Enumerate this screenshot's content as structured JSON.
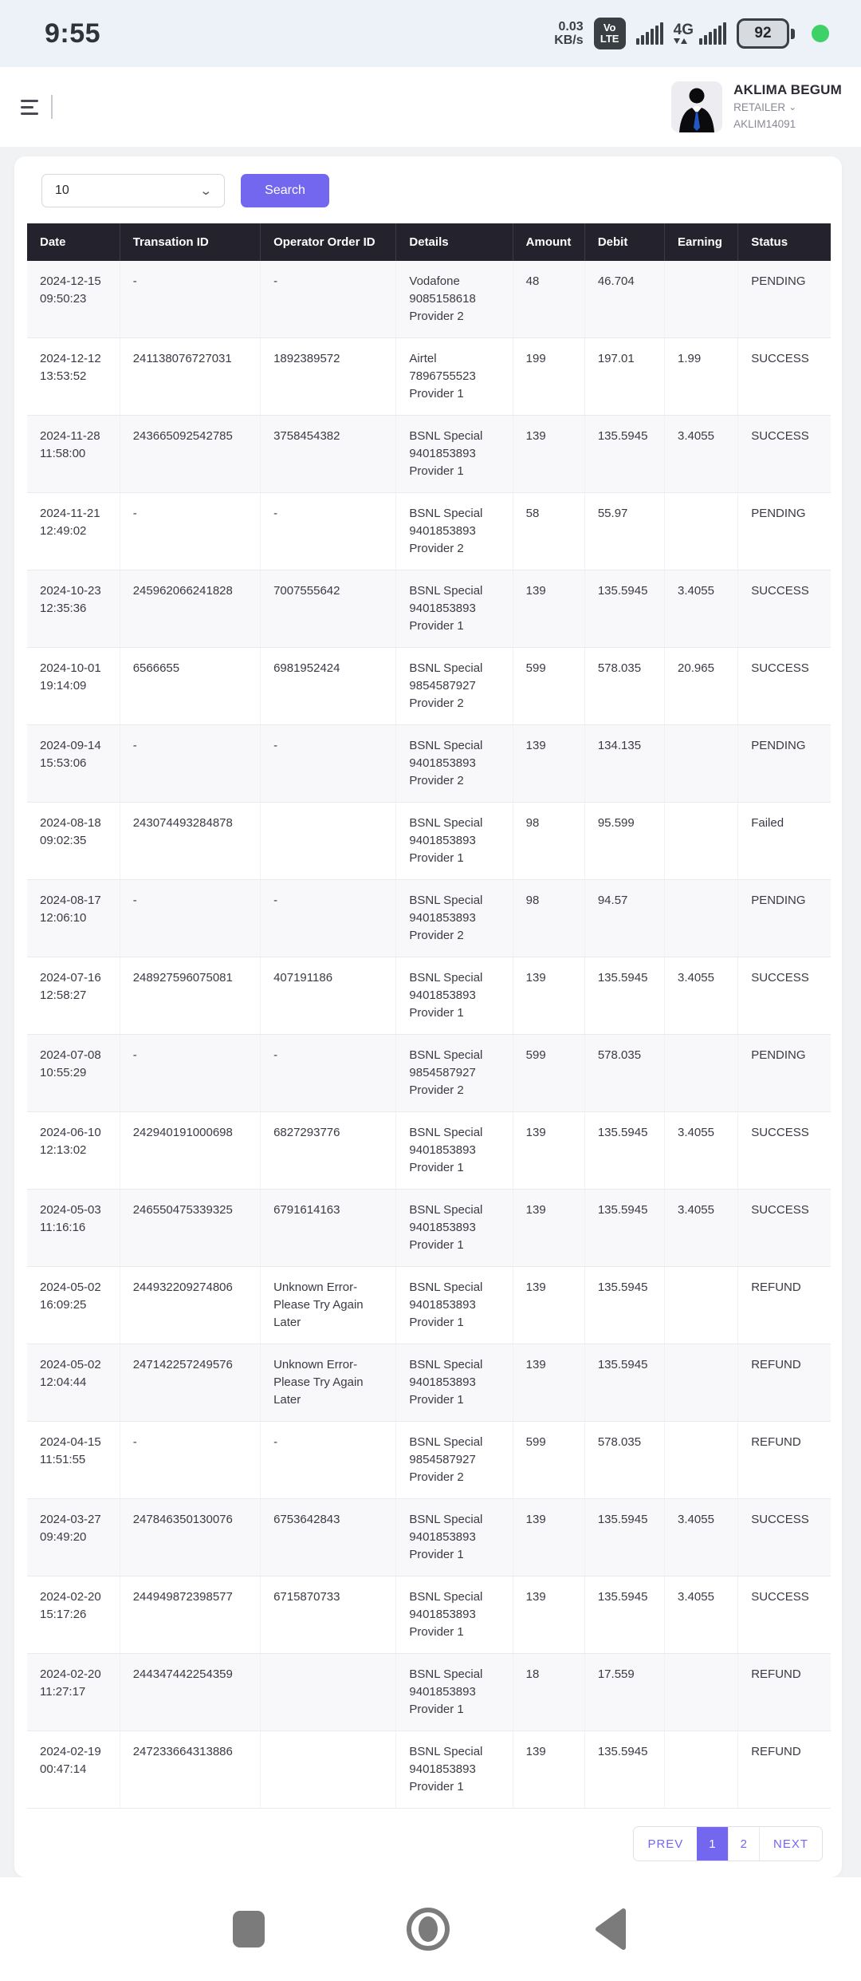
{
  "status_bar": {
    "time": "9:55",
    "net_speed_top": "0.03",
    "net_speed_bottom": "KB/s",
    "volte_top": "Vo",
    "volte_bottom": "LTE",
    "network_type": "4G",
    "battery_percent": "92"
  },
  "header": {
    "user_name": "AKLIMA BEGUM",
    "user_role": "RETAILER",
    "role_chevron": "⌄",
    "user_id": "AKLIM14091"
  },
  "controls": {
    "page_size_value": "10",
    "select_chevron": "⌄",
    "search_label": "Search"
  },
  "table": {
    "columns": [
      "Date",
      "Transation ID",
      "Operator Order ID",
      "Details",
      "Amount",
      "Debit",
      "Earning",
      "Status"
    ],
    "rows": [
      {
        "date": "2024-12-15 09:50:23",
        "txn_id": "-",
        "op_order_id": "-",
        "details_name": "Vodafone",
        "details_number": "9085158618",
        "details_provider": "Provider 2",
        "amount": "48",
        "debit": "46.704",
        "earning": "",
        "status": "PENDING"
      },
      {
        "date": "2024-12-12 13:53:52",
        "txn_id": "241138076727031",
        "op_order_id": "1892389572",
        "details_name": "Airtel",
        "details_number": "7896755523",
        "details_provider": "Provider 1",
        "amount": "199",
        "debit": "197.01",
        "earning": "1.99",
        "status": "SUCCESS"
      },
      {
        "date": "2024-11-28 11:58:00",
        "txn_id": "243665092542785",
        "op_order_id": "3758454382",
        "details_name": "BSNL Special",
        "details_number": "9401853893",
        "details_provider": "Provider 1",
        "amount": "139",
        "debit": "135.5945",
        "earning": "3.4055",
        "status": "SUCCESS"
      },
      {
        "date": "2024-11-21 12:49:02",
        "txn_id": "-",
        "op_order_id": "-",
        "details_name": "BSNL Special",
        "details_number": "9401853893",
        "details_provider": "Provider 2",
        "amount": "58",
        "debit": "55.97",
        "earning": "",
        "status": "PENDING"
      },
      {
        "date": "2024-10-23 12:35:36",
        "txn_id": "245962066241828",
        "op_order_id": "7007555642",
        "details_name": "BSNL Special",
        "details_number": "9401853893",
        "details_provider": "Provider 1",
        "amount": "139",
        "debit": "135.5945",
        "earning": "3.4055",
        "status": "SUCCESS"
      },
      {
        "date": "2024-10-01 19:14:09",
        "txn_id": "6566655",
        "op_order_id": "6981952424",
        "details_name": "BSNL Special",
        "details_number": "9854587927",
        "details_provider": "Provider 2",
        "amount": "599",
        "debit": "578.035",
        "earning": "20.965",
        "status": "SUCCESS"
      },
      {
        "date": "2024-09-14 15:53:06",
        "txn_id": "-",
        "op_order_id": "-",
        "details_name": "BSNL Special",
        "details_number": "9401853893",
        "details_provider": "Provider 2",
        "amount": "139",
        "debit": "134.135",
        "earning": "",
        "status": "PENDING"
      },
      {
        "date": "2024-08-18 09:02:35",
        "txn_id": "243074493284878",
        "op_order_id": "",
        "details_name": "BSNL Special",
        "details_number": "9401853893",
        "details_provider": "Provider 1",
        "amount": "98",
        "debit": "95.599",
        "earning": "",
        "status": "Failed"
      },
      {
        "date": "2024-08-17 12:06:10",
        "txn_id": "-",
        "op_order_id": "-",
        "details_name": "BSNL Special",
        "details_number": "9401853893",
        "details_provider": "Provider 2",
        "amount": "98",
        "debit": "94.57",
        "earning": "",
        "status": "PENDING"
      },
      {
        "date": "2024-07-16 12:58:27",
        "txn_id": "248927596075081",
        "op_order_id": "407191186",
        "details_name": "BSNL Special",
        "details_number": "9401853893",
        "details_provider": "Provider 1",
        "amount": "139",
        "debit": "135.5945",
        "earning": "3.4055",
        "status": "SUCCESS"
      },
      {
        "date": "2024-07-08 10:55:29",
        "txn_id": "-",
        "op_order_id": "-",
        "details_name": "BSNL Special",
        "details_number": "9854587927",
        "details_provider": "Provider 2",
        "amount": "599",
        "debit": "578.035",
        "earning": "",
        "status": "PENDING"
      },
      {
        "date": "2024-06-10 12:13:02",
        "txn_id": "242940191000698",
        "op_order_id": "6827293776",
        "details_name": "BSNL Special",
        "details_number": "9401853893",
        "details_provider": "Provider 1",
        "amount": "139",
        "debit": "135.5945",
        "earning": "3.4055",
        "status": "SUCCESS"
      },
      {
        "date": "2024-05-03 11:16:16",
        "txn_id": "246550475339325",
        "op_order_id": "6791614163",
        "details_name": "BSNL Special",
        "details_number": "9401853893",
        "details_provider": "Provider 1",
        "amount": "139",
        "debit": "135.5945",
        "earning": "3.4055",
        "status": "SUCCESS"
      },
      {
        "date": "2024-05-02 16:09:25",
        "txn_id": "244932209274806",
        "op_order_id": "Unknown Error-Please Try Again Later",
        "details_name": "BSNL Special",
        "details_number": "9401853893",
        "details_provider": "Provider 1",
        "amount": "139",
        "debit": "135.5945",
        "earning": "",
        "status": "REFUND"
      },
      {
        "date": "2024-05-02 12:04:44",
        "txn_id": "247142257249576",
        "op_order_id": "Unknown Error-Please Try Again Later",
        "details_name": "BSNL Special",
        "details_number": "9401853893",
        "details_provider": "Provider 1",
        "amount": "139",
        "debit": "135.5945",
        "earning": "",
        "status": "REFUND"
      },
      {
        "date": "2024-04-15 11:51:55",
        "txn_id": "-",
        "op_order_id": "-",
        "details_name": "BSNL Special",
        "details_number": "9854587927",
        "details_provider": "Provider 2",
        "amount": "599",
        "debit": "578.035",
        "earning": "",
        "status": "REFUND"
      },
      {
        "date": "2024-03-27 09:49:20",
        "txn_id": "247846350130076",
        "op_order_id": "6753642843",
        "details_name": "BSNL Special",
        "details_number": "9401853893",
        "details_provider": "Provider 1",
        "amount": "139",
        "debit": "135.5945",
        "earning": "3.4055",
        "status": "SUCCESS"
      },
      {
        "date": "2024-02-20 15:17:26",
        "txn_id": "244949872398577",
        "op_order_id": "6715870733",
        "details_name": "BSNL Special",
        "details_number": "9401853893",
        "details_provider": "Provider 1",
        "amount": "139",
        "debit": "135.5945",
        "earning": "3.4055",
        "status": "SUCCESS"
      },
      {
        "date": "2024-02-20 11:27:17",
        "txn_id": "244347442254359",
        "op_order_id": "",
        "details_name": "BSNL Special",
        "details_number": "9401853893",
        "details_provider": "Provider 1",
        "amount": "18",
        "debit": "17.559",
        "earning": "",
        "status": "REFUND"
      },
      {
        "date": "2024-02-19 00:47:14",
        "txn_id": "247233664313886",
        "op_order_id": "",
        "details_name": "BSNL Special",
        "details_number": "9401853893",
        "details_provider": "Provider 1",
        "amount": "139",
        "debit": "135.5945",
        "earning": "",
        "status": "REFUND"
      }
    ]
  },
  "pagination": {
    "prev_label": "PREV",
    "pages": [
      "1",
      "2"
    ],
    "active_page": "1",
    "next_label": "NEXT"
  },
  "colors": {
    "accent": "#7367f0",
    "table_header_bg": "#23222d",
    "statusbar_bg": "#ecf2f8",
    "page_bg": "#f1f2f4",
    "online_dot": "#3ed167"
  }
}
